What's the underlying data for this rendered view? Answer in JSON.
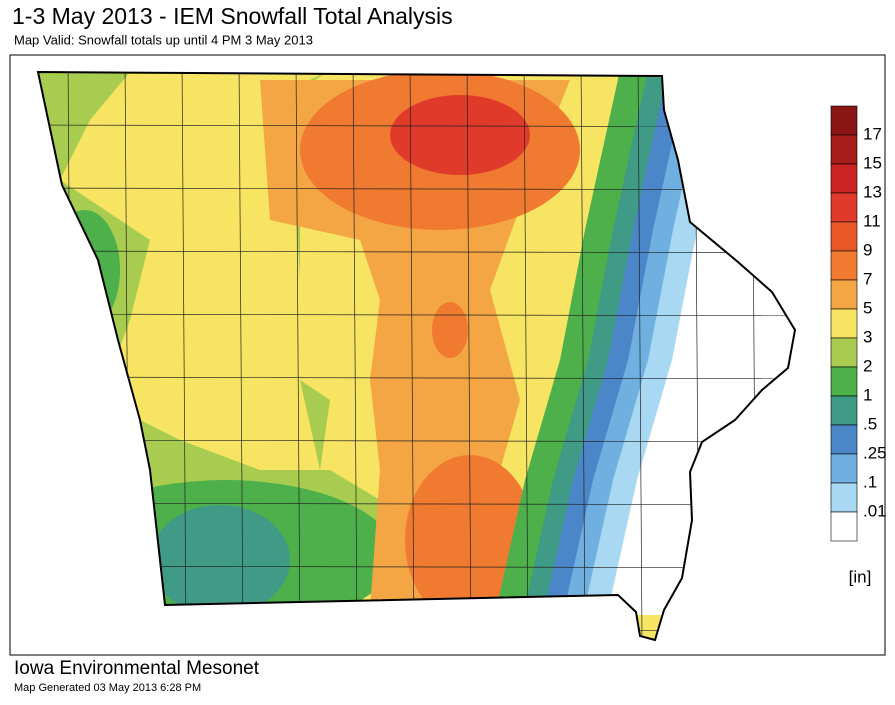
{
  "header": {
    "title": "1-3 May 2013 - IEM Snowfall Total Analysis",
    "subtitle": "Map Valid: Snowfall totals up until 4 PM 3 May 2013"
  },
  "legend": {
    "top_color": "#8b1414",
    "items": [
      {
        "label": "17",
        "color": "#a81c1c"
      },
      {
        "label": "15",
        "color": "#cc2424"
      },
      {
        "label": "13",
        "color": "#e03a2a"
      },
      {
        "label": "11",
        "color": "#ea5a28"
      },
      {
        "label": "9",
        "color": "#f07a30"
      },
      {
        "label": "7",
        "color": "#f4a645"
      },
      {
        "label": "5",
        "color": "#f7e463"
      },
      {
        "label": "3",
        "color": "#a8cc4f"
      },
      {
        "label": "2",
        "color": "#4db04a"
      },
      {
        "label": "1",
        "color": "#3f9a86"
      },
      {
        "label": ".5",
        "color": "#4a86c8"
      },
      {
        "label": ".25",
        "color": "#6fb0e0"
      },
      {
        "label": ".1",
        "color": "#a8d8f2"
      },
      {
        "label": ".01",
        "color": "#ffffff"
      }
    ],
    "units": "[in]"
  },
  "footer": {
    "title": "Iowa Environmental Mesonet",
    "note": "Map Generated 03 May 2013 6:28 PM"
  }
}
